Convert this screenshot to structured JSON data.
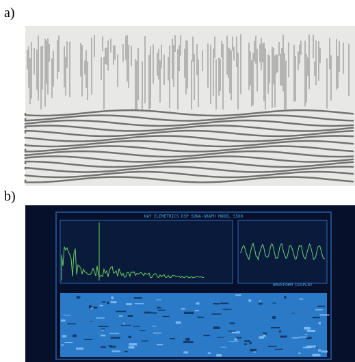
{
  "labels": {
    "a": "a)",
    "b": "b)"
  },
  "screen": {
    "title": "KAY ELEMETRICS DSP SONA-GRAPH MODEL 5500",
    "waveform_label": "WAVEFORM DISPLAY"
  }
}
